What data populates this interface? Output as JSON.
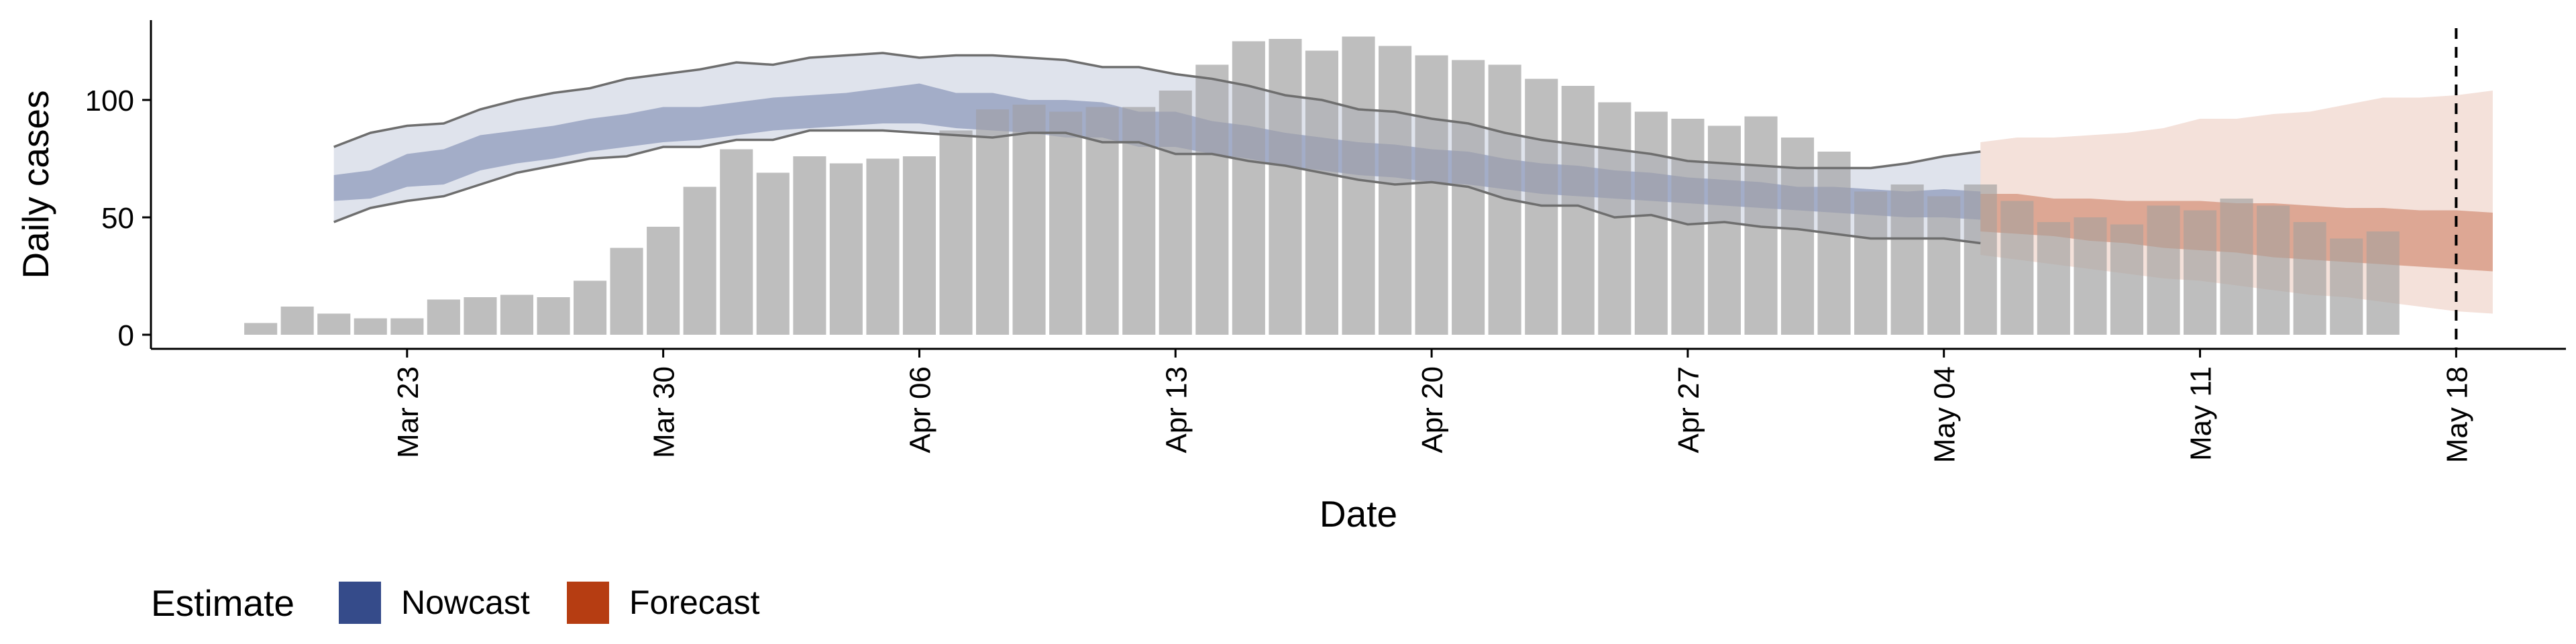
{
  "chart_data": {
    "type": "bar",
    "xlabel": "Date",
    "ylabel": "Daily cases",
    "xlim": [
      "2020-03-16",
      "2020-05-21"
    ],
    "ylim": [
      -6,
      134
    ],
    "y_ticks": [
      0,
      50,
      100
    ],
    "x_ticks": [
      {
        "date": "2020-03-23",
        "label": "Mar 23"
      },
      {
        "date": "2020-03-30",
        "label": "Mar 30"
      },
      {
        "date": "2020-04-06",
        "label": "Apr 06"
      },
      {
        "date": "2020-04-13",
        "label": "Apr 13"
      },
      {
        "date": "2020-04-20",
        "label": "Apr 20"
      },
      {
        "date": "2020-04-27",
        "label": "Apr 27"
      },
      {
        "date": "2020-05-04",
        "label": "May 04"
      },
      {
        "date": "2020-05-11",
        "label": "May 11"
      },
      {
        "date": "2020-05-18",
        "label": "May 18"
      }
    ],
    "grid": false,
    "reference_line": {
      "date": "2020-05-18",
      "style": "dashed"
    },
    "legend": {
      "title": "Estimate",
      "position": "bottom-left",
      "items": [
        {
          "label": "Nowcast",
          "color": "#354b8a"
        },
        {
          "label": "Forecast",
          "color": "#b63d12"
        }
      ]
    },
    "bar_color": "#bebebe",
    "bars": {
      "start_date": "2020-03-19",
      "values": [
        5,
        12,
        9,
        7,
        7,
        15,
        16,
        17,
        16,
        23,
        37,
        46,
        63,
        79,
        69,
        76,
        73,
        75,
        76,
        87,
        96,
        98,
        95,
        97,
        97,
        104,
        115,
        125,
        126,
        121,
        127,
        123,
        119,
        117,
        115,
        109,
        106,
        99,
        95,
        92,
        89,
        93,
        84,
        78,
        61,
        64,
        59,
        64,
        57,
        48,
        50,
        47,
        55,
        53,
        58,
        55,
        48,
        41,
        44
      ]
    },
    "series": [
      {
        "name": "Nowcast",
        "color": "#354b8a",
        "start_date": "2020-03-21",
        "outer_upper": [
          80,
          86,
          89,
          90,
          96,
          100,
          103,
          105,
          109,
          111,
          113,
          116,
          115,
          118,
          119,
          120,
          118,
          119,
          119,
          118,
          117,
          114,
          114,
          111,
          109,
          106,
          102,
          100,
          96,
          95,
          92,
          90,
          86,
          83,
          81,
          79,
          77,
          74,
          73,
          72,
          71,
          71,
          71,
          73,
          76,
          78
        ],
        "inner_upper": [
          68,
          70,
          77,
          79,
          85,
          87,
          89,
          92,
          94,
          97,
          97,
          99,
          101,
          102,
          103,
          105,
          107,
          103,
          103,
          100,
          100,
          99,
          95,
          95,
          91,
          89,
          86,
          84,
          82,
          81,
          79,
          78,
          75,
          73,
          72,
          70,
          69,
          67,
          66,
          65,
          63,
          63,
          62,
          61,
          62,
          61
        ],
        "inner_lower": [
          57,
          58,
          63,
          64,
          70,
          73,
          75,
          78,
          80,
          82,
          83,
          85,
          87,
          88,
          89,
          90,
          90,
          88,
          87,
          86,
          84,
          84,
          80,
          80,
          77,
          75,
          72,
          70,
          68,
          67,
          65,
          64,
          62,
          60,
          59,
          58,
          57,
          56,
          55,
          54,
          53,
          52,
          51,
          50,
          50,
          49
        ],
        "outer_lower": [
          48,
          54,
          57,
          59,
          64,
          69,
          72,
          75,
          76,
          80,
          80,
          83,
          83,
          87,
          87,
          87,
          86,
          85,
          84,
          86,
          86,
          82,
          82,
          77,
          77,
          74,
          72,
          69,
          66,
          64,
          65,
          63,
          58,
          55,
          55,
          50,
          51,
          47,
          48,
          46,
          45,
          43,
          41,
          41,
          41,
          39
        ]
      },
      {
        "name": "Forecast",
        "color": "#b63d12",
        "start_date": "2020-05-05",
        "outer_upper": [
          82,
          84,
          84,
          85,
          86,
          88,
          92,
          92,
          94,
          95,
          98,
          101,
          101,
          102,
          104
        ],
        "inner_upper": [
          60,
          60,
          58,
          58,
          57,
          57,
          57,
          56,
          56,
          55,
          54,
          54,
          53,
          53,
          52
        ],
        "inner_lower": [
          44,
          43,
          42,
          40,
          39,
          37,
          36,
          35,
          33,
          32,
          31,
          30,
          29,
          28,
          27
        ],
        "outer_lower": [
          34,
          32,
          30,
          28,
          26,
          24,
          23,
          21,
          19,
          17,
          16,
          14,
          12,
          10,
          9
        ]
      }
    ]
  }
}
